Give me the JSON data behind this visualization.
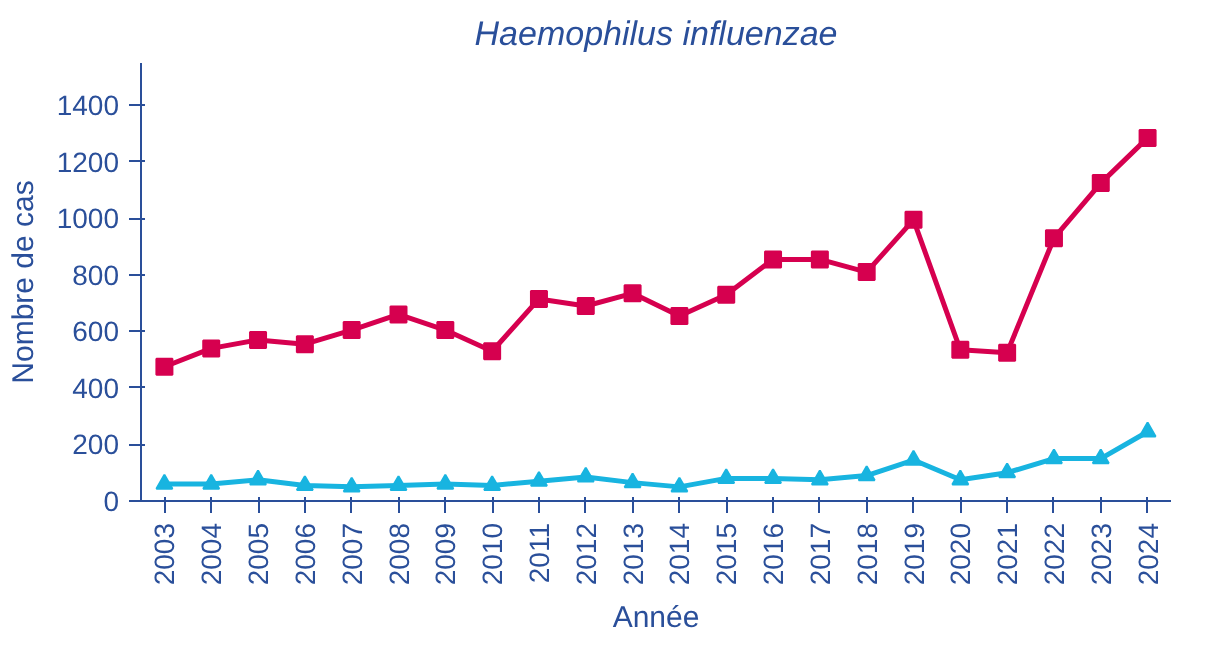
{
  "chart_data": {
    "type": "line",
    "title": "Haemophilus influenzae",
    "xlabel": "Année",
    "ylabel": "Nombre de cas",
    "categories": [
      "2003",
      "2004",
      "2005",
      "2006",
      "2007",
      "2008",
      "2009",
      "2010",
      "2011",
      "2012",
      "2013",
      "2014",
      "2015",
      "2016",
      "2017",
      "2018",
      "2019",
      "2020",
      "2021",
      "2022",
      "2023",
      "2024"
    ],
    "series": [
      {
        "color": "#d6004f",
        "marker": "square",
        "values": [
          475,
          540,
          570,
          555,
          605,
          660,
          605,
          530,
          715,
          690,
          735,
          655,
          730,
          855,
          855,
          810,
          995,
          535,
          525,
          930,
          1125,
          1285
        ]
      },
      {
        "color": "#18b4e0",
        "marker": "triangle",
        "values": [
          60,
          60,
          75,
          55,
          50,
          55,
          60,
          55,
          70,
          85,
          65,
          50,
          80,
          80,
          75,
          90,
          145,
          75,
          100,
          150,
          150,
          245
        ]
      }
    ],
    "ylim": [
      0,
      1550
    ],
    "yticks": [
      0,
      200,
      400,
      600,
      800,
      1000,
      1200,
      1400
    ]
  }
}
